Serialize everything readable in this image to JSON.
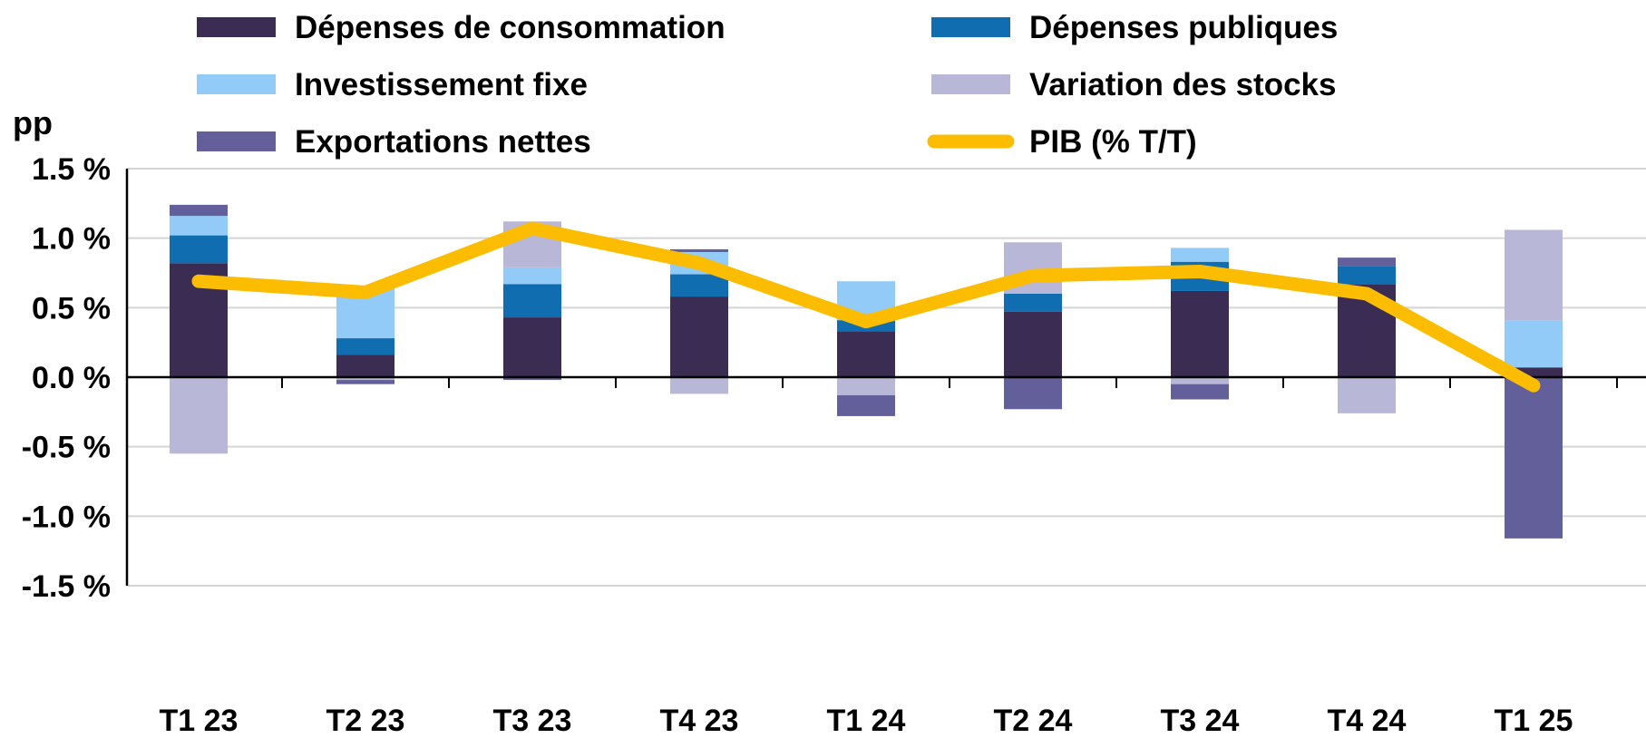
{
  "chart_data": {
    "type": "bar",
    "stacked": true,
    "unit_label": "pp",
    "categories": [
      "T1 23",
      "T2 23",
      "T3 23",
      "T4 23",
      "T1 24",
      "T2 24",
      "T3 24",
      "T4 24",
      "T1 25"
    ],
    "y_ticks": [
      "1.5 %",
      "1.0 %",
      "0.5 %",
      "0.0 %",
      "-0.5 %",
      "-1.0 %",
      "-1.5 %"
    ],
    "ylim": [
      -1.5,
      1.5
    ],
    "grid": true,
    "legend_position": "top",
    "series": [
      {
        "name": "Dépenses de consommation",
        "color": "#3b2c54",
        "values": [
          0.82,
          0.16,
          0.43,
          0.58,
          0.33,
          0.47,
          0.62,
          0.67,
          0.07
        ]
      },
      {
        "name": "Dépenses publiques",
        "color": "#0f6db0",
        "values": [
          0.2,
          0.12,
          0.24,
          0.16,
          0.08,
          0.13,
          0.21,
          0.13,
          0.0
        ]
      },
      {
        "name": "Investissement fixe",
        "color": "#92cbf7",
        "values": [
          0.14,
          0.37,
          0.12,
          0.16,
          0.28,
          0.0,
          0.1,
          0.0,
          0.34
        ]
      },
      {
        "name": "Variation des stocks",
        "color": "#b9b7d8",
        "values": [
          -0.55,
          -0.02,
          0.33,
          -0.12,
          -0.13,
          0.37,
          -0.05,
          -0.26,
          0.65
        ]
      },
      {
        "name": "Exportations nettes",
        "color": "#625f9b",
        "values": [
          0.08,
          -0.03,
          -0.02,
          0.02,
          -0.15,
          -0.23,
          -0.11,
          0.06,
          -1.16
        ]
      }
    ],
    "line": {
      "name": "PIB (% T/T)",
      "color": "#fcbc00",
      "values": [
        0.69,
        0.61,
        1.07,
        0.82,
        0.4,
        0.73,
        0.76,
        0.6,
        -0.06
      ]
    }
  }
}
